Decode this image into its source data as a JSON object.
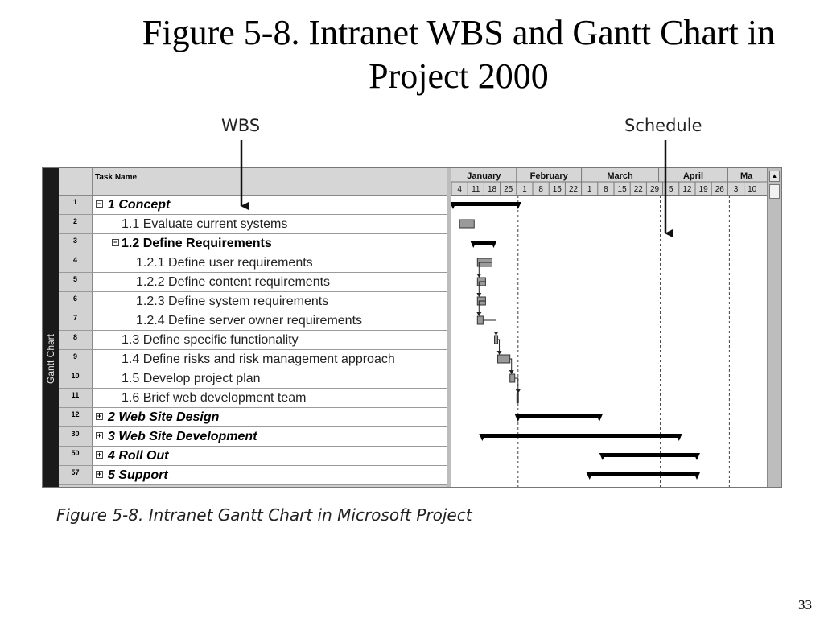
{
  "slide": {
    "title": "Figure 5-8. Intranet WBS and Gantt Chart in Project 2000",
    "callout_wbs": "WBS",
    "callout_schedule": "Schedule",
    "caption": "Figure 5-8. Intranet Gantt Chart in Microsoft Project",
    "page_number": "33"
  },
  "project": {
    "view_bar_label": "Gantt Chart",
    "task_name_header": "Task Name",
    "tasks": [
      {
        "id": "1",
        "name": "1 Concept",
        "level": 0,
        "summary": true,
        "expander": "−"
      },
      {
        "id": "2",
        "name": "1.1 Evaluate current systems",
        "level": 1,
        "summary": false,
        "expander": ""
      },
      {
        "id": "3",
        "name": "1.2 Define Requirements",
        "level": 1,
        "summary": true,
        "expander": "−"
      },
      {
        "id": "4",
        "name": "1.2.1 Define user requirements",
        "level": 2,
        "summary": false,
        "expander": ""
      },
      {
        "id": "5",
        "name": "1.2.2 Define content requirements",
        "level": 2,
        "summary": false,
        "expander": ""
      },
      {
        "id": "6",
        "name": "1.2.3 Define system requirements",
        "level": 2,
        "summary": false,
        "expander": ""
      },
      {
        "id": "7",
        "name": "1.2.4 Define server owner requirements",
        "level": 2,
        "summary": false,
        "expander": ""
      },
      {
        "id": "8",
        "name": "1.3 Define specific functionality",
        "level": 1,
        "summary": false,
        "expander": ""
      },
      {
        "id": "9",
        "name": "1.4 Define risks and risk management approach",
        "level": 1,
        "summary": false,
        "expander": ""
      },
      {
        "id": "10",
        "name": "1.5 Develop project plan",
        "level": 1,
        "summary": false,
        "expander": ""
      },
      {
        "id": "11",
        "name": "1.6 Brief web development team",
        "level": 1,
        "summary": false,
        "expander": ""
      },
      {
        "id": "12",
        "name": "2 Web Site Design",
        "level": 0,
        "summary": true,
        "expander": "+"
      },
      {
        "id": "30",
        "name": "3 Web Site Development",
        "level": 0,
        "summary": true,
        "expander": "+"
      },
      {
        "id": "50",
        "name": "4 Roll Out",
        "level": 0,
        "summary": true,
        "expander": "+"
      },
      {
        "id": "57",
        "name": "5 Support",
        "level": 0,
        "summary": true,
        "expander": "+"
      }
    ],
    "timescale": {
      "months": [
        "January",
        "February",
        "March",
        "April",
        "Ma"
      ],
      "week_labels": [
        "4",
        "11",
        "18",
        "25",
        "1",
        "8",
        "15",
        "22",
        "1",
        "8",
        "15",
        "22",
        "29",
        "5",
        "12",
        "19",
        "26",
        "3",
        "10"
      ]
    },
    "bars": [
      {
        "task": "1",
        "type": "summary",
        "start_week": 0,
        "end_week": 4.0
      },
      {
        "task": "2",
        "type": "task",
        "start_week": 0.4,
        "end_week": 1.3
      },
      {
        "task": "3",
        "type": "summary",
        "start_week": 1.25,
        "end_week": 2.5
      },
      {
        "task": "4",
        "type": "task",
        "start_week": 1.5,
        "end_week": 2.4
      },
      {
        "task": "5",
        "type": "task",
        "start_week": 1.5,
        "end_week": 2.0
      },
      {
        "task": "6",
        "type": "task",
        "start_week": 1.5,
        "end_week": 2.0
      },
      {
        "task": "7",
        "type": "task",
        "start_week": 1.5,
        "end_week": 1.85
      },
      {
        "task": "8",
        "type": "task",
        "start_week": 2.55,
        "end_week": 2.75
      },
      {
        "task": "9",
        "type": "task",
        "start_week": 2.75,
        "end_week": 3.5
      },
      {
        "task": "10",
        "type": "task",
        "start_week": 3.5,
        "end_week": 3.8
      },
      {
        "task": "11",
        "type": "milestone",
        "start_week": 3.9,
        "end_week": 4.0
      },
      {
        "task": "12",
        "type": "summary",
        "start_week": 4.0,
        "end_week": 9.0
      },
      {
        "task": "30",
        "type": "summary",
        "start_week": 1.8,
        "end_week": 13.9
      },
      {
        "task": "50",
        "type": "summary",
        "start_week": 9.2,
        "end_week": 15.0
      },
      {
        "task": "57",
        "type": "summary",
        "start_week": 8.4,
        "end_week": 15.0
      }
    ],
    "gridline_weeks": [
      4.0,
      12.75,
      17.0
    ]
  }
}
